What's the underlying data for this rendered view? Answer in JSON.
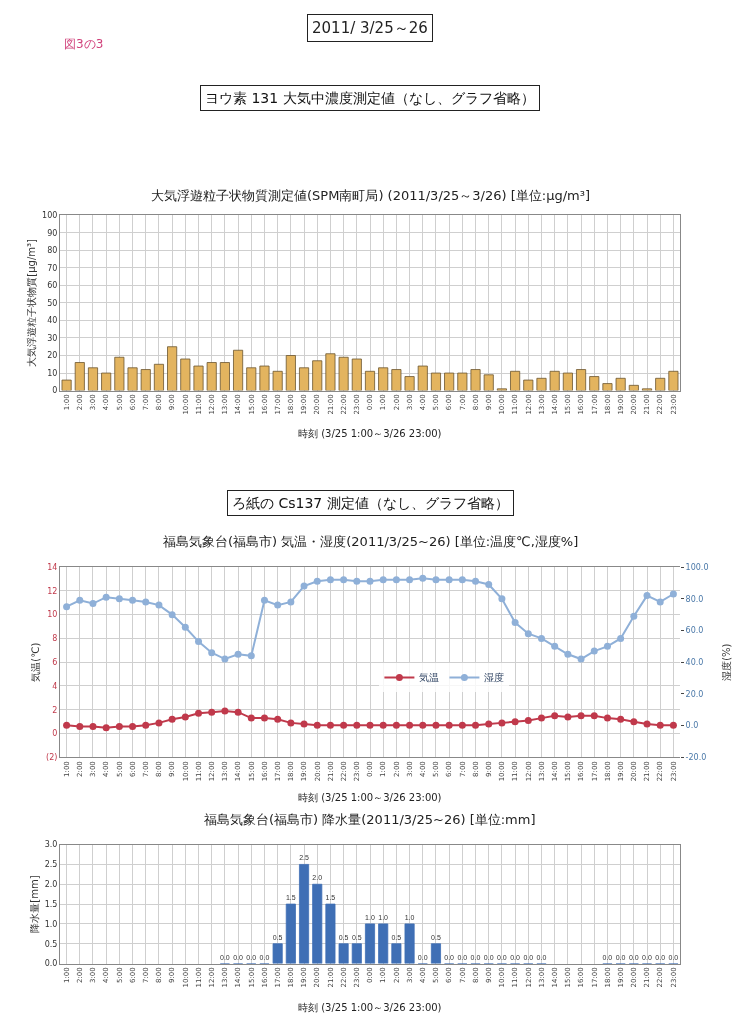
{
  "chart_data": [
    {
      "type": "bar",
      "title": "大気浮遊粒子状物質測定値(SPM南町局) (2011/3/25～3/26) [単位:μg/m³]",
      "xlabel": "時刻 (3/25 1:00～3/26 23:00)",
      "ylabel": "大気浮遊粒子状物質[μg/m³]",
      "categories": [
        "1:00",
        "2:00",
        "3:00",
        "4:00",
        "5:00",
        "6:00",
        "7:00",
        "8:00",
        "9:00",
        "10:00",
        "11:00",
        "12:00",
        "13:00",
        "14:00",
        "15:00",
        "16:00",
        "17:00",
        "18:00",
        "19:00",
        "20:00",
        "21:00",
        "22:00",
        "23:00",
        "0:00",
        "1:00",
        "2:00",
        "3:00",
        "4:00",
        "5:00",
        "6:00",
        "7:00",
        "8:00",
        "9:00",
        "10:00",
        "11:00",
        "12:00",
        "13:00",
        "14:00",
        "15:00",
        "16:00",
        "17:00",
        "18:00",
        "19:00",
        "20:00",
        "21:00",
        "22:00",
        "23:00"
      ],
      "values": [
        6,
        16,
        13,
        10,
        19,
        13,
        12,
        15,
        25,
        18,
        14,
        16,
        16,
        23,
        13,
        14,
        11,
        20,
        13,
        17,
        21,
        19,
        18,
        11,
        13,
        12,
        8,
        14,
        10,
        10,
        10,
        12,
        9,
        1,
        11,
        6,
        7,
        11,
        10,
        12,
        8,
        4,
        7,
        3,
        1,
        7,
        11
      ],
      "color": "#e3b45f",
      "ylim": [
        0,
        100
      ],
      "yticks": [
        0,
        10,
        20,
        30,
        40,
        50,
        60,
        70,
        80,
        90,
        100
      ],
      "grid": true,
      "annotations": [
        "図3の3",
        "2011/ 3/25～26",
        "ヨウ素 131 大気中濃度測定値（なし、グラフ省略）"
      ]
    },
    {
      "type": "line",
      "title": "福島気象台(福島市) 気温・湿度(2011/3/25~26) [単位:温度℃,湿度%]",
      "xlabel": "時刻 (3/25 1:00～3/26 23:00)",
      "ylabel": "気温(℃)",
      "y2label": "湿度(%)",
      "categories": [
        "1:00",
        "2:00",
        "3:00",
        "4:00",
        "5:00",
        "6:00",
        "7:00",
        "8:00",
        "9:00",
        "10:00",
        "11:00",
        "12:00",
        "13:00",
        "14:00",
        "15:00",
        "16:00",
        "17:00",
        "18:00",
        "19:00",
        "20:00",
        "21:00",
        "22:00",
        "23:00",
        "0:00",
        "1:00",
        "2:00",
        "3:00",
        "4:00",
        "5:00",
        "6:00",
        "7:00",
        "8:00",
        "9:00",
        "10:00",
        "11:00",
        "12:00",
        "13:00",
        "14:00",
        "15:00",
        "16:00",
        "17:00",
        "18:00",
        "19:00",
        "20:00",
        "21:00",
        "22:00",
        "23:00"
      ],
      "series": [
        {
          "name": "気温",
          "color": "#c0394b",
          "values": [
            0.7,
            0.6,
            0.6,
            0.5,
            0.6,
            0.6,
            0.7,
            0.9,
            1.2,
            1.4,
            1.7,
            1.8,
            1.9,
            1.8,
            1.3,
            1.3,
            1.2,
            0.9,
            0.8,
            0.7,
            0.7,
            0.7,
            0.7,
            0.7,
            0.7,
            0.7,
            0.7,
            0.7,
            0.7,
            0.7,
            0.7,
            0.7,
            0.8,
            0.9,
            1.0,
            1.1,
            1.3,
            1.5,
            1.4,
            1.5,
            1.5,
            1.3,
            1.2,
            1.0,
            0.8,
            0.7,
            0.7
          ]
        },
        {
          "name": "湿度",
          "color": "#8fb0d8",
          "axis": "y2",
          "values": [
            75,
            79,
            77,
            81,
            80,
            79,
            78,
            76,
            70,
            62,
            53,
            46,
            42,
            45,
            44,
            79,
            76,
            78,
            88,
            91,
            92,
            92,
            91,
            91,
            92,
            92,
            92,
            93,
            92,
            92,
            92,
            91,
            89,
            80,
            65,
            58,
            55,
            50,
            45,
            42,
            47,
            50,
            55,
            69,
            82,
            78,
            83
          ]
        }
      ],
      "ylim": [
        -2,
        14
      ],
      "yticks": [
        {
          "value": -2,
          "label": "(2)"
        },
        0,
        2,
        4,
        6,
        8,
        10,
        12,
        14
      ],
      "y2lim": [
        -20,
        100
      ],
      "y2ticks": [
        {
          "value": -20,
          "label": "-20.0"
        },
        {
          "value": 0,
          "label": "0.0"
        },
        {
          "value": 20,
          "label": "20.0"
        },
        {
          "value": 40,
          "label": "40.0"
        },
        {
          "value": 60,
          "label": "60.0"
        },
        {
          "value": 80,
          "label": "80.0"
        },
        {
          "value": 100,
          "label": "100.0"
        }
      ],
      "grid": true,
      "legend": "center",
      "marker": "circle",
      "line_style": "solid",
      "annotations": [
        "ろ紙の Cs137 測定値（なし、グラフ省略）"
      ]
    },
    {
      "type": "bar",
      "title": "福島気象台(福島市) 降水量(2011/3/25~26) [単位:mm]",
      "xlabel": "時刻 (3/25 1:00～3/26 23:00)",
      "ylabel": "降水量[mm]",
      "categories": [
        "1:00",
        "2:00",
        "3:00",
        "4:00",
        "5:00",
        "6:00",
        "7:00",
        "8:00",
        "9:00",
        "10:00",
        "11:00",
        "12:00",
        "13:00",
        "14:00",
        "15:00",
        "16:00",
        "17:00",
        "18:00",
        "19:00",
        "20:00",
        "21:00",
        "22:00",
        "23:00",
        "0:00",
        "1:00",
        "2:00",
        "3:00",
        "4:00",
        "5:00",
        "6:00",
        "7:00",
        "8:00",
        "9:00",
        "10:00",
        "11:00",
        "12:00",
        "13:00",
        "14:00",
        "15:00",
        "16:00",
        "17:00",
        "18:00",
        "19:00",
        "20:00",
        "21:00",
        "22:00",
        "23:00"
      ],
      "values": [
        null,
        null,
        null,
        null,
        null,
        null,
        null,
        null,
        null,
        null,
        null,
        null,
        0,
        0,
        0,
        0,
        0.5,
        1.5,
        2.5,
        2.0,
        1.5,
        0.5,
        0.5,
        1.0,
        1.0,
        0.5,
        1.0,
        0,
        0.5,
        0,
        0,
        0,
        0,
        0,
        0,
        0,
        0,
        null,
        null,
        null,
        null,
        0,
        0,
        0,
        0,
        0,
        0
      ],
      "value_labels": [
        null,
        null,
        null,
        null,
        null,
        null,
        null,
        null,
        null,
        null,
        null,
        null,
        "0.0",
        "0.0",
        "0.0",
        "0.0",
        "0.5",
        "1.5",
        "2.5",
        "2.0",
        "1.5",
        "0.5",
        "0.5",
        "1.0",
        "1.0",
        "0.5",
        "1.0",
        "0.0",
        "0.5",
        "0.0",
        "0.0",
        "0.0",
        "0.0",
        "0.0",
        "0.0",
        "0.0",
        "0.0",
        null,
        null,
        null,
        null,
        "0.0",
        "0.0",
        "0.0",
        "0.0",
        "0.0",
        "0.0"
      ],
      "color": "#3f6fb5",
      "ylim": [
        0,
        3
      ],
      "yticks": [
        {
          "value": 0,
          "label": "0.0"
        },
        {
          "value": 0.5,
          "label": "0.5"
        },
        {
          "value": 1,
          "label": "1.0"
        },
        {
          "value": 1.5,
          "label": "1.5"
        },
        {
          "value": 2,
          "label": "2.0"
        },
        {
          "value": 2.5,
          "label": "2.5"
        },
        {
          "value": 3,
          "label": "3.0"
        }
      ],
      "grid": true
    }
  ]
}
